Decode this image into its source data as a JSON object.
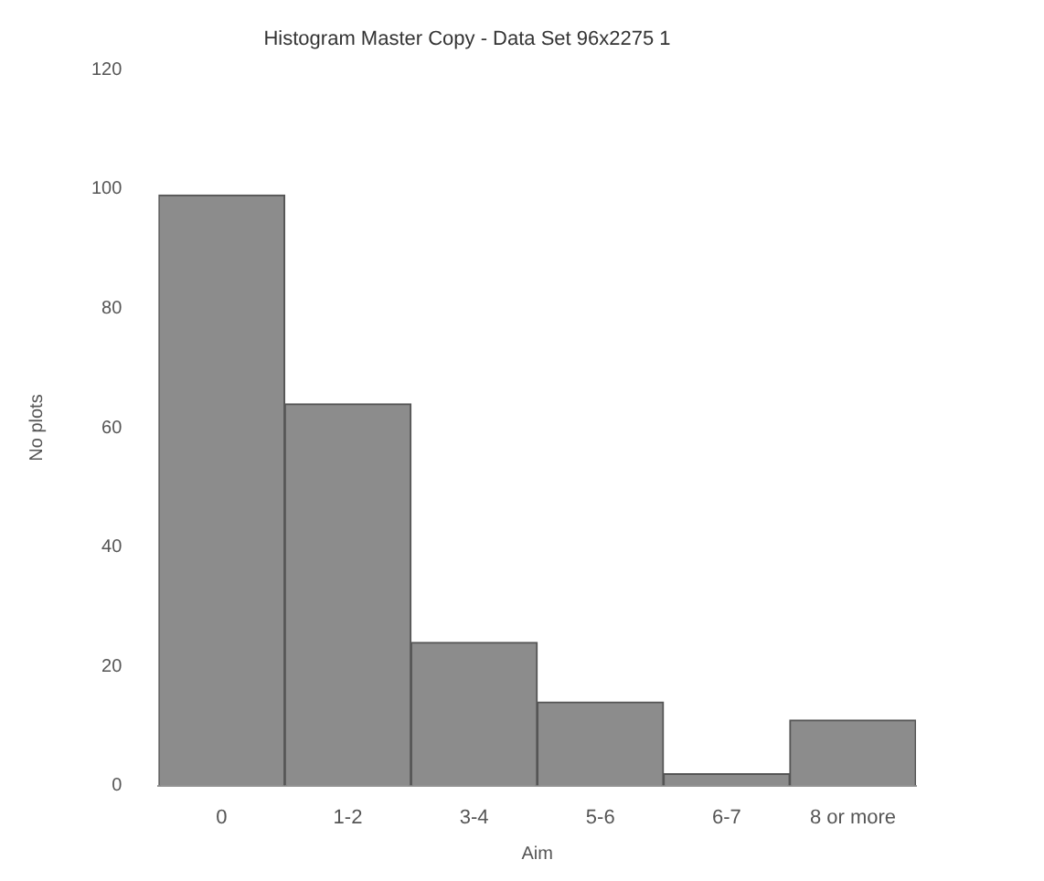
{
  "chart_data": {
    "type": "bar",
    "title": "Histogram Master Copy - Data Set 96x2275 1",
    "xlabel": "Aim",
    "ylabel": "No plots",
    "categories": [
      "0",
      "1-2",
      "3-4",
      "5-6",
      "6-7",
      "8 or more"
    ],
    "values": [
      99,
      64,
      24,
      14,
      2,
      11
    ],
    "color": "#8c8c8c",
    "ylim": [
      0,
      120
    ],
    "yticks": [
      0,
      20,
      40,
      60,
      80,
      100,
      120
    ],
    "grid": false,
    "legend": false
  }
}
